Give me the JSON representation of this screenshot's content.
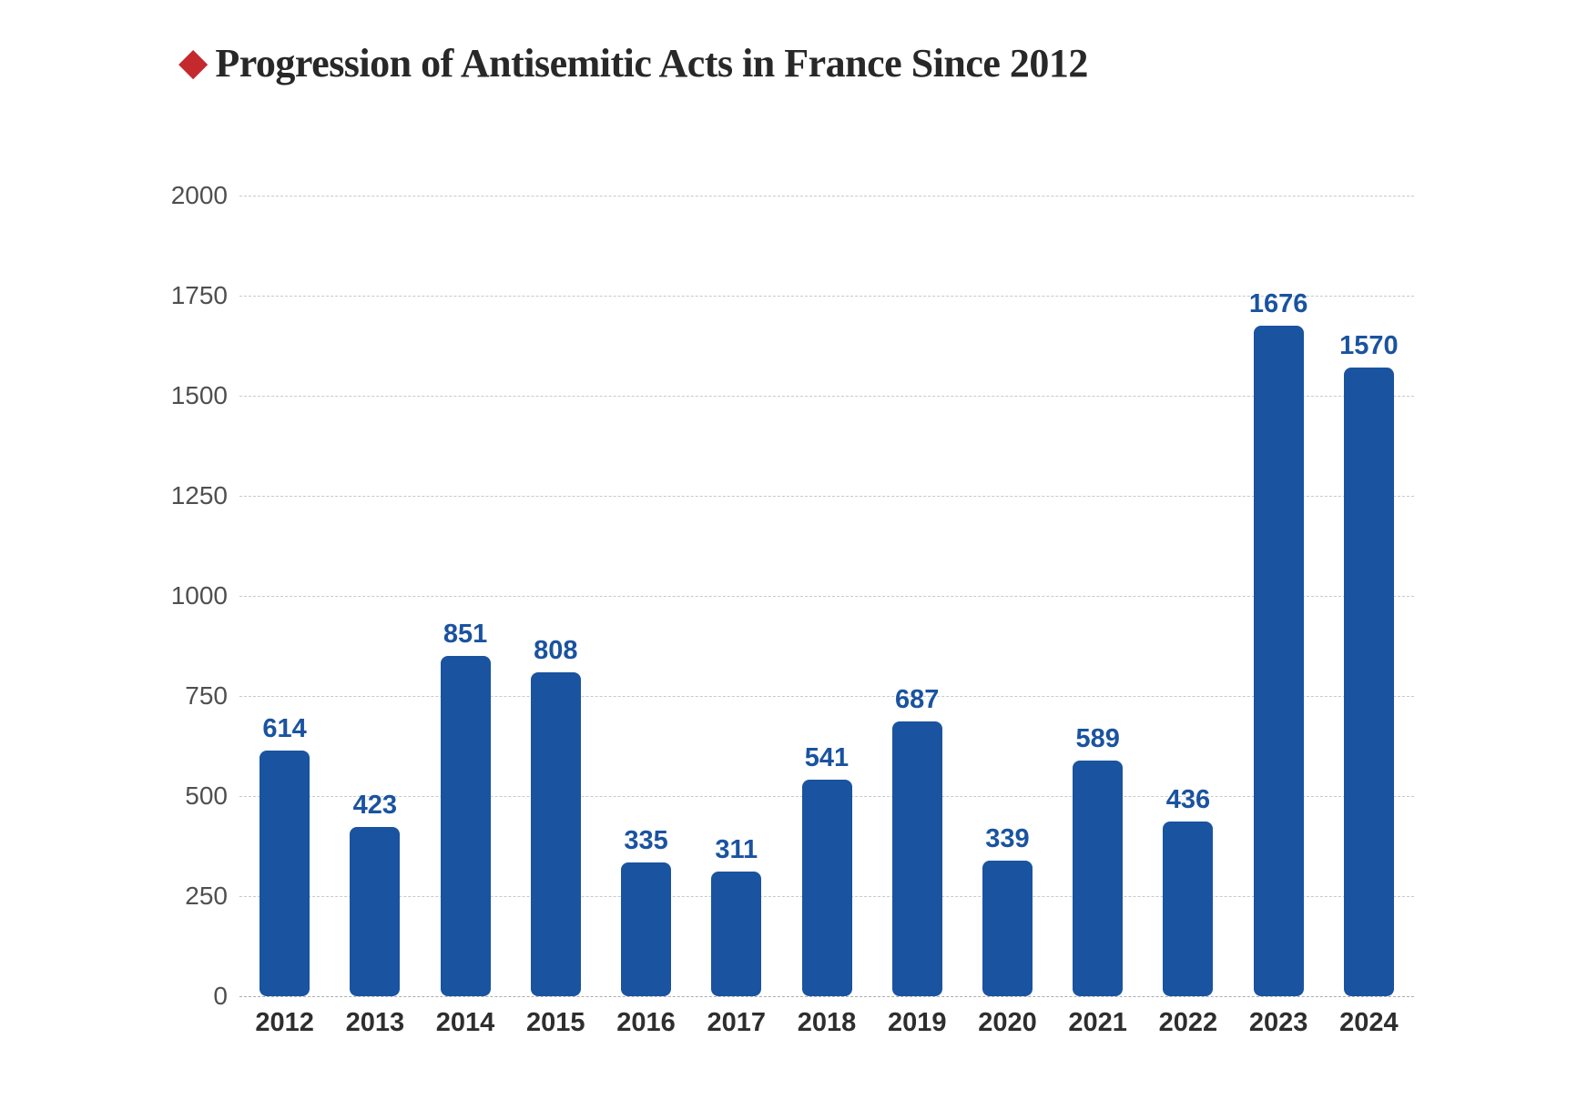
{
  "title": {
    "icon": "◆",
    "text": "Progression of Antisemitic Acts in France Since 2012"
  },
  "colors": {
    "bar": "#1A53A0",
    "value_label": "#1A53A0",
    "diamond": "#C4292E",
    "title_text": "#282828",
    "x_axis_label": "#2E2E2E",
    "y_axis_label": "#4F4F4F",
    "gridline": "#C9C9C9",
    "baseline": "#ADADAD",
    "background": "#FFFFFF"
  },
  "chart_data": {
    "type": "bar",
    "title": "Progression of Antisemitic Acts in France Since 2012",
    "categories": [
      "2012",
      "2013",
      "2014",
      "2015",
      "2016",
      "2017",
      "2018",
      "2019",
      "2020",
      "2021",
      "2022",
      "2023",
      "2024"
    ],
    "values": [
      614,
      423,
      851,
      808,
      335,
      311,
      541,
      687,
      339,
      589,
      436,
      1676,
      1570
    ],
    "xlabel": "",
    "ylabel": "",
    "ylim": [
      0,
      2000
    ],
    "yticks": [
      0,
      250,
      500,
      750,
      1000,
      1250,
      1500,
      1750,
      2000
    ],
    "grid": "horizontal-dashed",
    "legend": "none",
    "value_labels": true,
    "bar_corner_radius_px": 8
  }
}
